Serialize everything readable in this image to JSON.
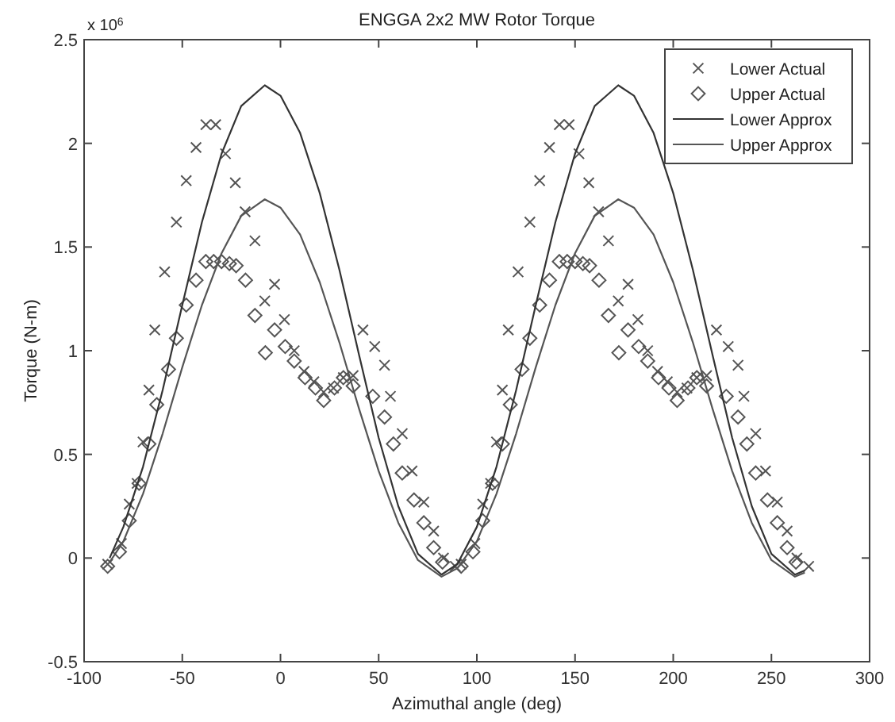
{
  "chart_data": {
    "type": "scatter",
    "title": "ENGGA 2x2 MW Rotor Torque",
    "xlabel": "Azimuthal angle (deg)",
    "ylabel": "Torque (N-m)",
    "annotations": [
      "x 10$^{6}$"
    ],
    "xlim": [
      -100,
      300
    ],
    "xticks": [
      -100,
      -50,
      0,
      50,
      100,
      150,
      200,
      250,
      300
    ],
    "ylim": [
      -0.5,
      2.5
    ],
    "yticks": [
      -0.5,
      0,
      0.5,
      1,
      1.5,
      2,
      2.5
    ],
    "grid": false,
    "legend": "top right",
    "series": [
      {
        "name": "Lower Actual",
        "marker": "cross",
        "color": "#555555",
        "x": [
          -88,
          -81,
          -77,
          -73,
          -70,
          -67,
          -64,
          -59,
          -53,
          -48,
          -43,
          -38,
          -33,
          -28,
          -23,
          -18,
          -13,
          -8,
          -3,
          2,
          7,
          12,
          17,
          22,
          27,
          32,
          37,
          42,
          48,
          53,
          56,
          62,
          67,
          73,
          78,
          83,
          89,
          92,
          99,
          103,
          107,
          110,
          113,
          116,
          121,
          127,
          132,
          137,
          142,
          147,
          152,
          157,
          162,
          167,
          172,
          177,
          182,
          187,
          192,
          197,
          202,
          207,
          212,
          217,
          222,
          228,
          233,
          236,
          242,
          247,
          253,
          258,
          263,
          269
        ],
        "values": [
          -0.03,
          0.07,
          0.26,
          0.36,
          0.56,
          0.81,
          1.1,
          1.38,
          1.62,
          1.82,
          1.98,
          2.09,
          2.09,
          1.95,
          1.81,
          1.67,
          1.53,
          1.24,
          1.32,
          1.15,
          1.0,
          0.9,
          0.85,
          0.8,
          0.82,
          0.87,
          0.88,
          1.1,
          1.02,
          0.93,
          0.78,
          0.6,
          0.42,
          0.27,
          0.13,
          0.0,
          -0.04,
          -0.03,
          0.07,
          0.26,
          0.36,
          0.56,
          0.81,
          1.1,
          1.38,
          1.62,
          1.82,
          1.98,
          2.09,
          2.09,
          1.95,
          1.81,
          1.67,
          1.53,
          1.24,
          1.32,
          1.15,
          1.0,
          0.9,
          0.85,
          0.8,
          0.82,
          0.87,
          0.88,
          1.1,
          1.02,
          0.93,
          0.78,
          0.6,
          0.42,
          0.27,
          0.13,
          0.0,
          -0.04
        ]
      },
      {
        "name": "Upper Actual",
        "marker": "diamond",
        "color": "#555555",
        "x": [
          -88,
          -82,
          -77,
          -72,
          -67,
          -63,
          -57,
          -53,
          -48,
          -43,
          -38,
          -34,
          -30,
          -26,
          -22.6,
          -17.8,
          -13,
          -7.7,
          -3,
          2.4,
          7,
          12.5,
          17.8,
          22,
          27.5,
          32,
          37,
          47,
          53,
          57.5,
          62,
          68,
          73,
          78,
          82.5,
          92,
          98,
          103,
          108,
          113,
          117,
          123,
          127,
          132,
          137,
          142,
          146,
          150,
          154,
          157.4,
          162.2,
          167,
          172.3,
          177,
          182.4,
          187,
          192.5,
          197.8,
          202,
          207.5,
          212,
          217,
          227,
          233,
          237.5,
          242,
          248,
          253,
          258,
          262.5
        ],
        "values": [
          -0.04,
          0.03,
          0.18,
          0.36,
          0.55,
          0.74,
          0.91,
          1.06,
          1.22,
          1.34,
          1.43,
          1.43,
          1.43,
          1.42,
          1.41,
          1.34,
          1.17,
          0.99,
          1.1,
          1.02,
          0.95,
          0.87,
          0.82,
          0.76,
          0.82,
          0.87,
          0.83,
          0.78,
          0.68,
          0.55,
          0.41,
          0.28,
          0.17,
          0.05,
          -0.02,
          -0.04,
          0.03,
          0.18,
          0.36,
          0.55,
          0.74,
          0.91,
          1.06,
          1.22,
          1.34,
          1.43,
          1.43,
          1.43,
          1.42,
          1.41,
          1.34,
          1.17,
          0.99,
          1.1,
          1.02,
          0.95,
          0.87,
          0.82,
          0.76,
          0.82,
          0.87,
          0.83,
          0.78,
          0.68,
          0.55,
          0.41,
          0.28,
          0.17,
          0.05,
          -0.02
        ]
      },
      {
        "name": "Lower Approx",
        "type": "line",
        "marker": "none",
        "color": "#333333",
        "x": [
          -87,
          -80,
          -70,
          -60,
          -50,
          -40,
          -30,
          -20,
          -8,
          0,
          10,
          20,
          30,
          40,
          50,
          60,
          70,
          82,
          90,
          100,
          110,
          120,
          130,
          140,
          150,
          160,
          172,
          180,
          190,
          200,
          210,
          220,
          230,
          240,
          250,
          262,
          267
        ],
        "values": [
          0.0,
          0.15,
          0.44,
          0.81,
          1.22,
          1.62,
          1.95,
          2.18,
          2.28,
          2.23,
          2.05,
          1.76,
          1.39,
          0.98,
          0.58,
          0.25,
          0.02,
          -0.08,
          -0.03,
          0.15,
          0.44,
          0.81,
          1.22,
          1.62,
          1.95,
          2.18,
          2.28,
          2.23,
          2.05,
          1.76,
          1.39,
          0.98,
          0.58,
          0.25,
          0.02,
          -0.08,
          -0.06
        ]
      },
      {
        "name": "Upper Approx",
        "type": "line",
        "marker": "none",
        "color": "#555555",
        "x": [
          -87,
          -80,
          -70,
          -60,
          -50,
          -40,
          -30,
          -20,
          -8,
          0,
          10,
          20,
          30,
          40,
          50,
          60,
          70,
          82,
          90,
          100,
          110,
          120,
          130,
          140,
          150,
          160,
          172,
          180,
          190,
          200,
          210,
          220,
          230,
          240,
          250,
          262,
          267
        ],
        "values": [
          -0.02,
          0.08,
          0.31,
          0.6,
          0.92,
          1.22,
          1.47,
          1.65,
          1.73,
          1.69,
          1.56,
          1.33,
          1.04,
          0.72,
          0.42,
          0.17,
          -0.01,
          -0.09,
          -0.05,
          0.08,
          0.31,
          0.6,
          0.92,
          1.22,
          1.47,
          1.65,
          1.73,
          1.69,
          1.56,
          1.33,
          1.04,
          0.72,
          0.42,
          0.17,
          -0.01,
          -0.09,
          -0.07
        ]
      }
    ]
  }
}
